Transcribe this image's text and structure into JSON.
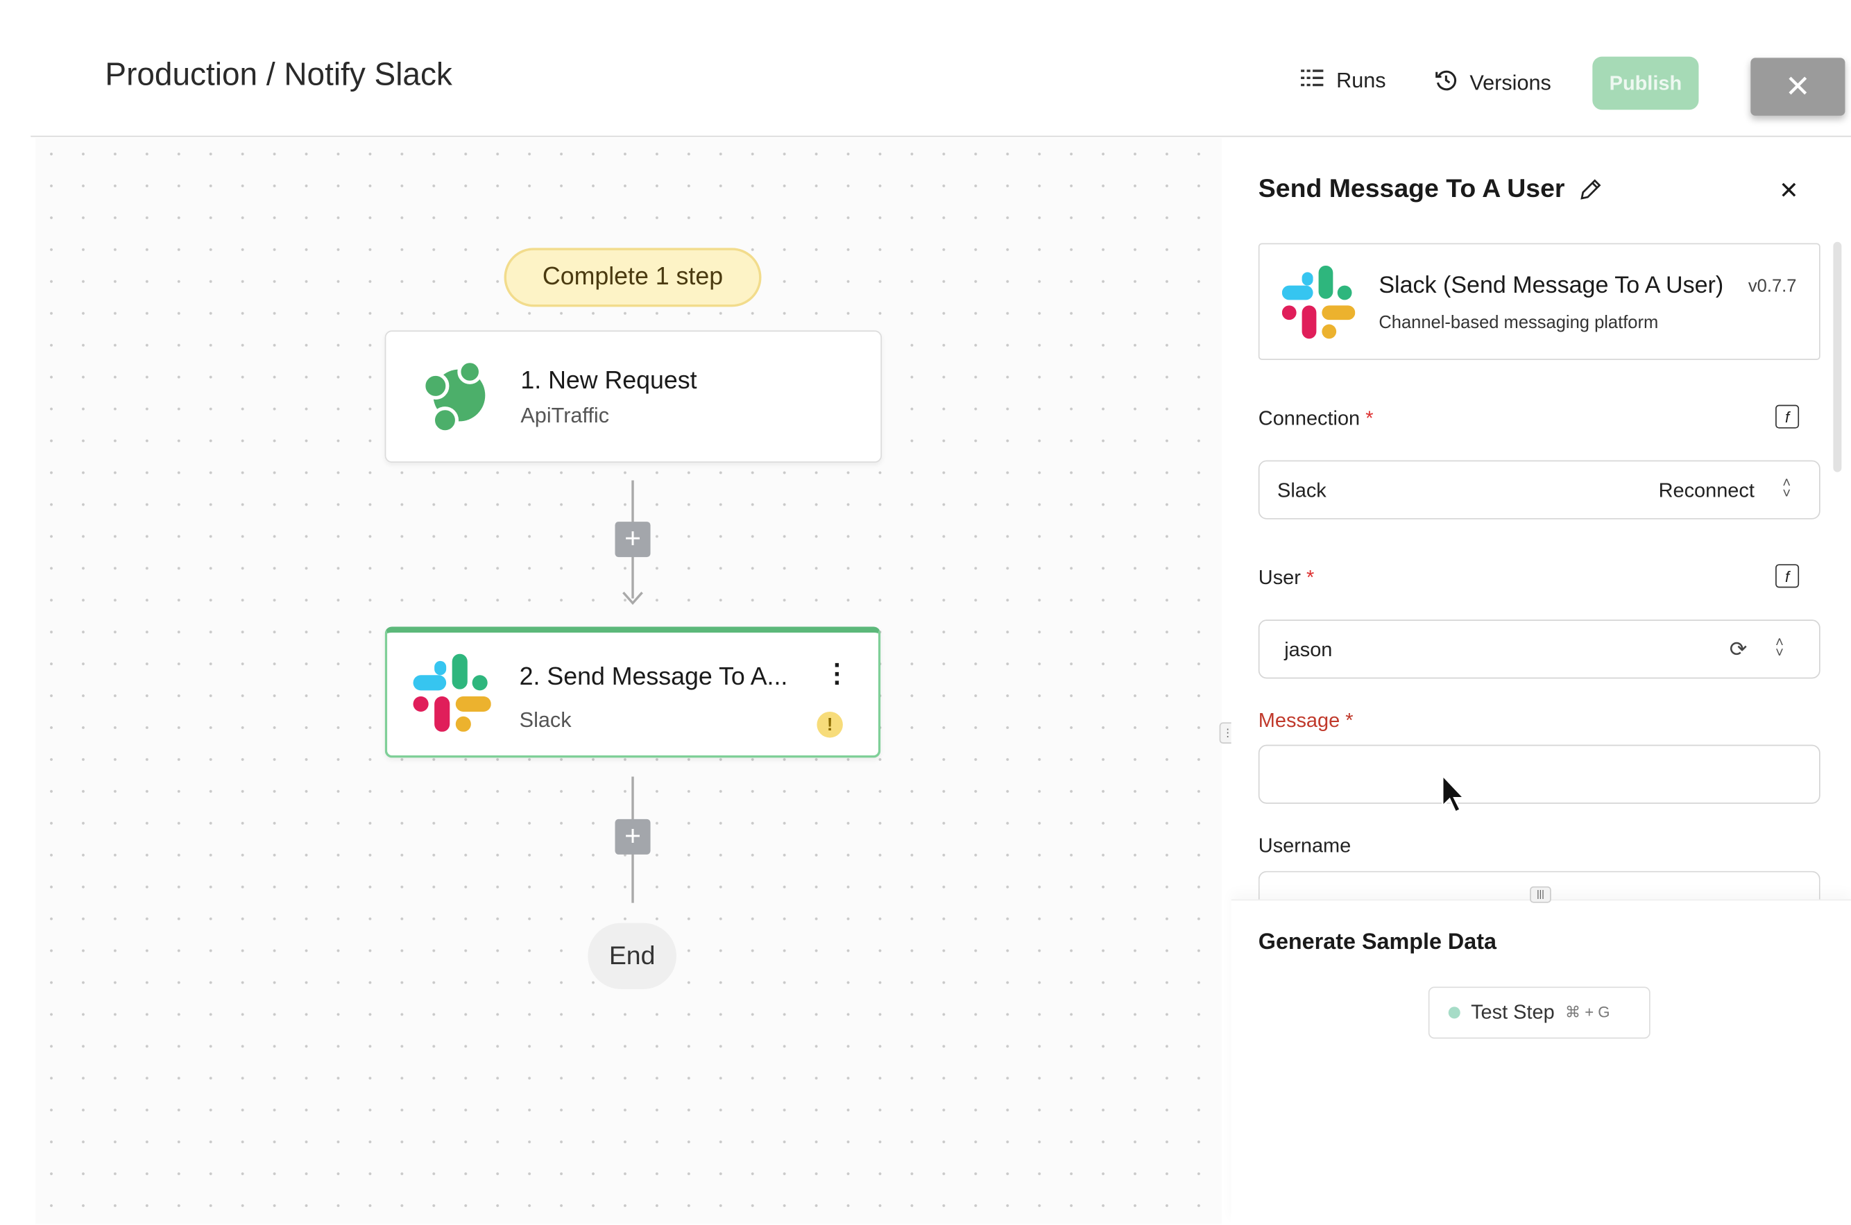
{
  "header": {
    "breadcrumb": "Production / Notify Slack",
    "runs_label": "Runs",
    "versions_label": "Versions",
    "publish_label": "Publish"
  },
  "canvas": {
    "status_pill": "Complete 1 step",
    "steps": [
      {
        "title": "1. New Request",
        "subtitle": "ApiTraffic"
      },
      {
        "title": "2. Send Message To A...",
        "subtitle": "Slack"
      }
    ],
    "end_label": "End"
  },
  "panel": {
    "title": "Send Message To A User",
    "piece": {
      "name": "Slack (Send Message To A User)",
      "version": "v0.7.7",
      "description": "Channel-based messaging platform"
    },
    "connection": {
      "label": "Connection",
      "value": "Slack",
      "action": "Reconnect"
    },
    "user": {
      "label": "User",
      "value": "jason"
    },
    "message": {
      "label": "Message",
      "value": ""
    },
    "username": {
      "label": "Username"
    },
    "required_mark": "*",
    "sample": {
      "title": "Generate Sample Data",
      "button": "Test Step",
      "shortcut": "⌘ + G"
    }
  },
  "colors": {
    "accent_green": "#5cb87a",
    "publish_disabled": "#a6dab6",
    "error_red": "#c0392b",
    "warning": "#f5d76e"
  }
}
